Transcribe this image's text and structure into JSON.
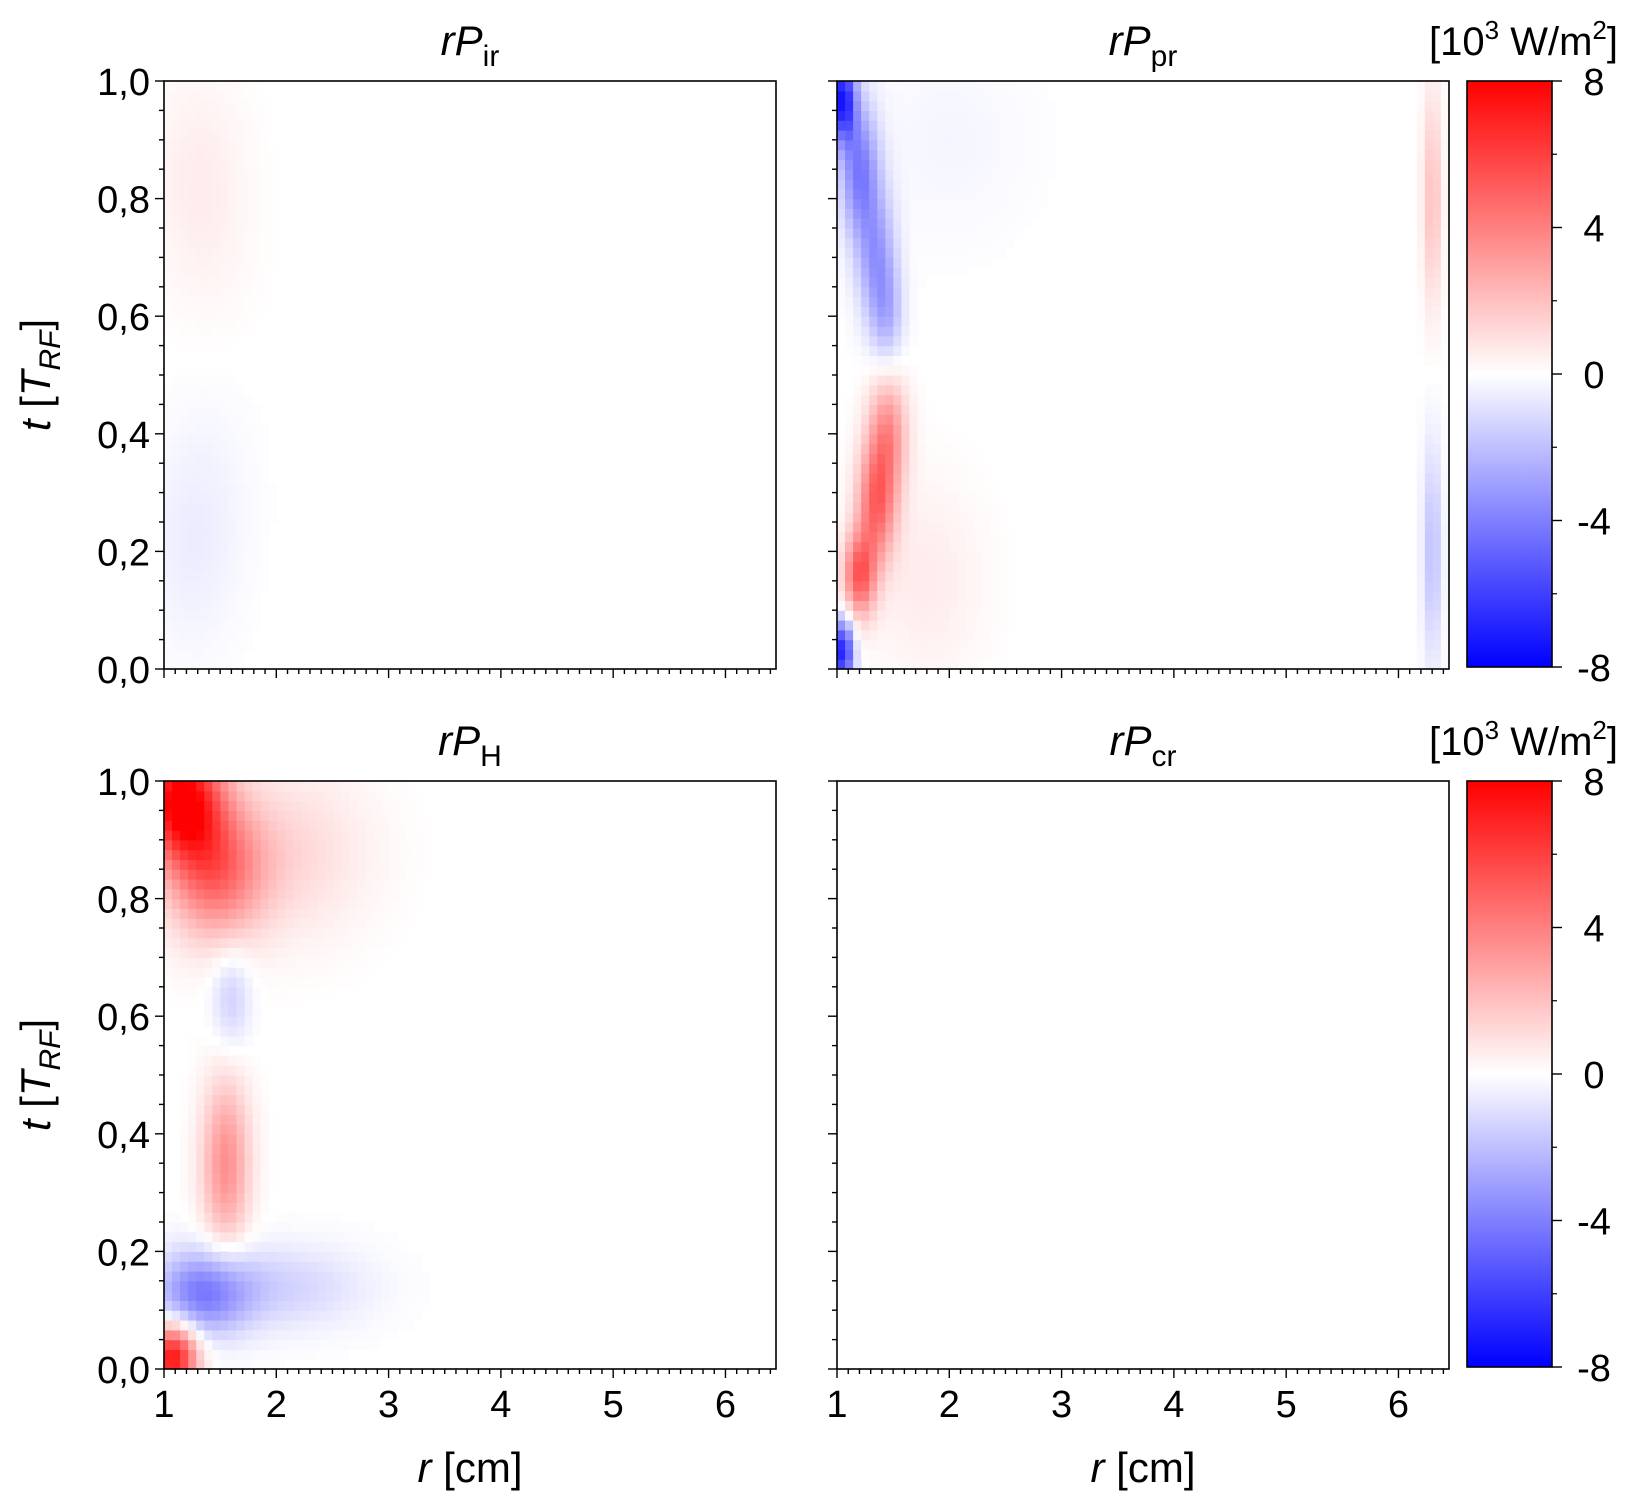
{
  "chart_data": [
    {
      "type": "heatmap",
      "title_main": "rP",
      "title_sub": "ir",
      "xlabel_var": "r",
      "xlabel_unit": " [cm]",
      "ylabel_var": "t",
      "ylabel_unit_open": " [",
      "ylabel_unit_var": "T",
      "ylabel_unit_sub": "RF",
      "ylabel_unit_close": "]",
      "xlim": [
        1,
        6.45
      ],
      "ylim": [
        0,
        1
      ],
      "x_ticks": [
        "1",
        "2",
        "3",
        "4",
        "5",
        "6"
      ],
      "y_ticks": [
        "0,0",
        "0,2",
        "0,4",
        "0,6",
        "0,8",
        "1,0"
      ],
      "show_xtick_labels": false,
      "show_ylabel": true,
      "features": [
        {
          "r": 1.3,
          "t": 0.85,
          "amp": 0.5,
          "sr": 0.3,
          "st": 0.12
        },
        {
          "r": 1.4,
          "t": 0.7,
          "amp": 0.2,
          "sr": 0.3,
          "st": 0.12
        },
        {
          "r": 1.25,
          "t": 0.2,
          "amp": -0.5,
          "sr": 0.3,
          "st": 0.12
        },
        {
          "r": 1.4,
          "t": 0.35,
          "amp": -0.2,
          "sr": 0.3,
          "st": 0.12
        }
      ]
    },
    {
      "type": "heatmap",
      "title_main": "rP",
      "title_sub": "pr",
      "xlabel_var": "r",
      "xlabel_unit": " [cm]",
      "xlim": [
        1,
        6.45
      ],
      "ylim": [
        0,
        1
      ],
      "x_ticks": [
        "1",
        "2",
        "3",
        "4",
        "5",
        "6"
      ],
      "y_ticks": [
        "0,0",
        "0,2",
        "0,4",
        "0,6",
        "0,8",
        "1,0"
      ],
      "show_xtick_labels": false,
      "show_ylabel": false,
      "colorbar": {
        "label_open": "[10",
        "label_sup": "3",
        "label_mid": " W/m",
        "label_sup2": "2",
        "label_close": "]",
        "ticks": [
          "8",
          "4",
          "0",
          "-4",
          "-8"
        ],
        "range": [
          -8,
          8
        ]
      },
      "features": [
        {
          "r": 1.05,
          "t": 0.97,
          "amp": -7,
          "sr": 0.08,
          "st": 0.05
        },
        {
          "r": 1.2,
          "t": 0.85,
          "amp": -4,
          "sr": 0.12,
          "st": 0.08
        },
        {
          "r": 1.35,
          "t": 0.7,
          "amp": -3,
          "sr": 0.12,
          "st": 0.08
        },
        {
          "r": 1.45,
          "t": 0.6,
          "amp": -2,
          "sr": 0.1,
          "st": 0.06
        },
        {
          "r": 1.45,
          "t": 0.4,
          "amp": 3.5,
          "sr": 0.12,
          "st": 0.07
        },
        {
          "r": 1.35,
          "t": 0.28,
          "amp": 4.5,
          "sr": 0.12,
          "st": 0.07
        },
        {
          "r": 1.2,
          "t": 0.16,
          "amp": 5,
          "sr": 0.1,
          "st": 0.05
        },
        {
          "r": 1.05,
          "t": 0.03,
          "amp": -7,
          "sr": 0.07,
          "st": 0.04
        },
        {
          "r": 1.8,
          "t": 0.15,
          "amp": 0.6,
          "sr": 0.35,
          "st": 0.12
        },
        {
          "r": 6.3,
          "t": 0.8,
          "amp": 2.0,
          "sr": 0.06,
          "st": 0.13
        },
        {
          "r": 6.3,
          "t": 0.2,
          "amp": -2.0,
          "sr": 0.06,
          "st": 0.13
        },
        {
          "r": 2.0,
          "t": 0.9,
          "amp": -0.3,
          "sr": 0.5,
          "st": 0.12
        }
      ]
    },
    {
      "type": "heatmap",
      "title_main": "rP",
      "title_sub": "H",
      "xlabel_var": "r",
      "xlabel_unit": " [cm]",
      "ylabel_var": "t",
      "ylabel_unit_open": " [",
      "ylabel_unit_var": "T",
      "ylabel_unit_sub": "RF",
      "ylabel_unit_close": "]",
      "xlim": [
        1,
        6.45
      ],
      "ylim": [
        0,
        1
      ],
      "x_ticks": [
        "1",
        "2",
        "3",
        "4",
        "5",
        "6"
      ],
      "y_ticks": [
        "0,0",
        "0,2",
        "0,4",
        "0,6",
        "0,8",
        "1,0"
      ],
      "show_xtick_labels": true,
      "show_ylabel": true,
      "features": [
        {
          "r": 1.15,
          "t": 0.97,
          "amp": 8,
          "sr": 0.25,
          "st": 0.07
        },
        {
          "r": 1.45,
          "t": 0.85,
          "amp": 4.5,
          "sr": 0.3,
          "st": 0.08
        },
        {
          "r": 2.1,
          "t": 0.88,
          "amp": 1.2,
          "sr": 0.5,
          "st": 0.1
        },
        {
          "r": 1.6,
          "t": 0.63,
          "amp": -1.5,
          "sr": 0.12,
          "st": 0.06
        },
        {
          "r": 1.55,
          "t": 0.35,
          "amp": 3.5,
          "sr": 0.15,
          "st": 0.1
        },
        {
          "r": 1.35,
          "t": 0.13,
          "amp": -4,
          "sr": 0.3,
          "st": 0.05
        },
        {
          "r": 2.1,
          "t": 0.14,
          "amp": -1.3,
          "sr": 0.5,
          "st": 0.05
        },
        {
          "r": 1.08,
          "t": 0.02,
          "amp": 7.5,
          "sr": 0.15,
          "st": 0.04
        }
      ]
    },
    {
      "type": "heatmap",
      "title_main": "rP",
      "title_sub": "cr",
      "xlabel_var": "r",
      "xlabel_unit": " [cm]",
      "xlim": [
        1,
        6.45
      ],
      "ylim": [
        0,
        1
      ],
      "x_ticks": [
        "1",
        "2",
        "3",
        "4",
        "5",
        "6"
      ],
      "y_ticks": [
        "0,0",
        "0,2",
        "0,4",
        "0,6",
        "0,8",
        "1,0"
      ],
      "show_xtick_labels": true,
      "show_ylabel": false,
      "colorbar": {
        "label_open": "[10",
        "label_sup": "3",
        "label_mid": " W/m",
        "label_sup2": "2",
        "label_close": "]",
        "ticks": [
          "8",
          "4",
          "0",
          "-4",
          "-8"
        ],
        "range": [
          -8,
          8
        ]
      },
      "features": []
    }
  ]
}
